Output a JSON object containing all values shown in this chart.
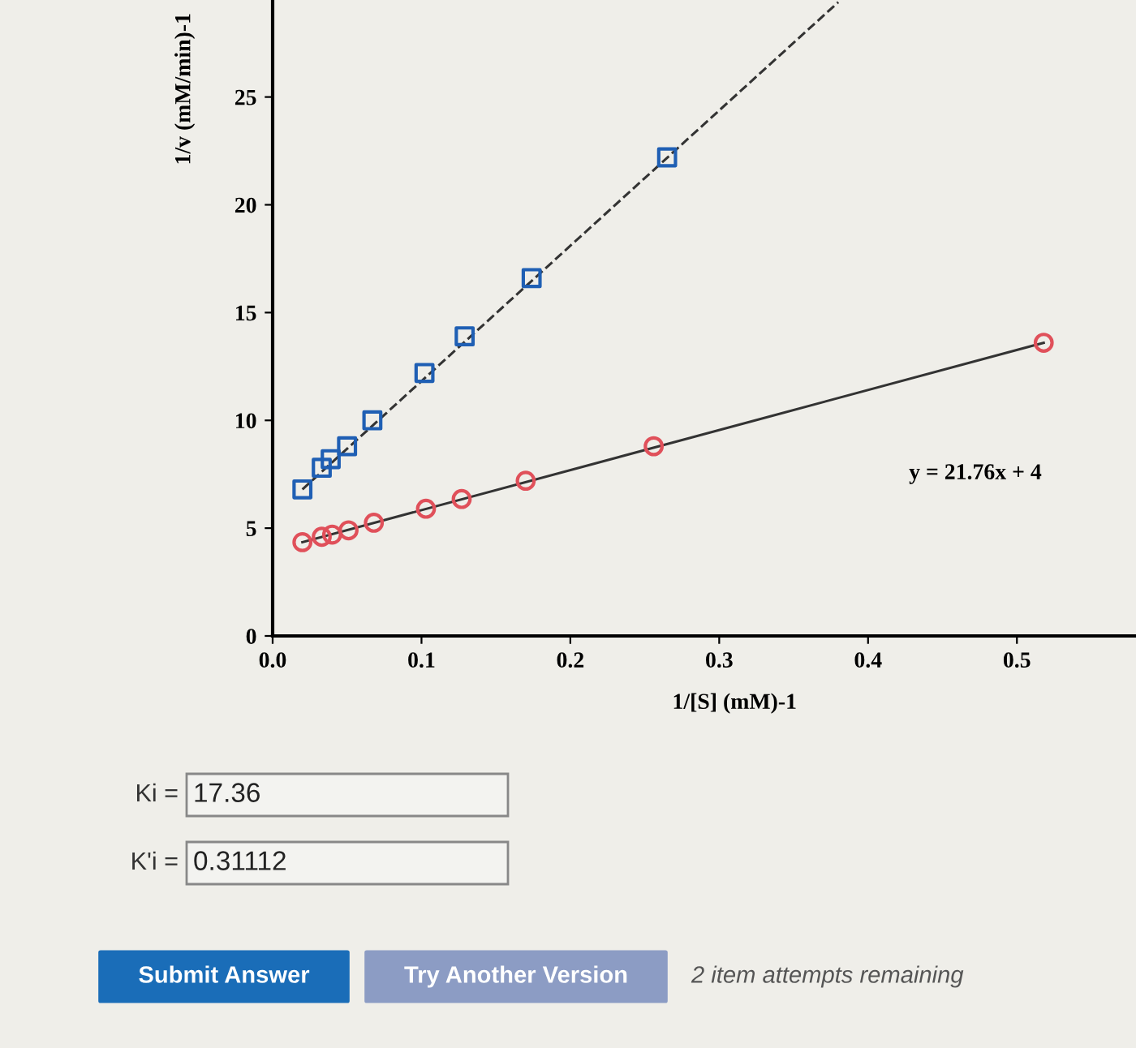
{
  "chart_data": {
    "type": "scatter",
    "xlabel": "1/[S] (mM)-1",
    "ylabel": "1/v (mM/min)-1",
    "xlim": [
      0,
      0.58
    ],
    "ylim": [
      0,
      29.5
    ],
    "xticks": [
      {
        "value": 0,
        "label": "0.0"
      },
      0.1,
      0.2,
      0.3,
      0.4,
      0.5
    ],
    "yticks": [
      0,
      5,
      10,
      15,
      20,
      25
    ],
    "grid": false,
    "legend": false,
    "series": [
      {
        "type": "line",
        "color": "#333333",
        "line_style": "dashed",
        "marker": "none",
        "x": [
          0.02,
          0.38
        ],
        "values": [
          6.8,
          29.4
        ]
      },
      {
        "type": "line",
        "color": "#333333",
        "line_style": "solid",
        "marker": "none",
        "x": [
          0.02,
          0.518
        ],
        "values": [
          4.35,
          13.6
        ]
      },
      {
        "color": "#1f5fb4",
        "marker": "square",
        "x": [
          0.02,
          0.033,
          0.039,
          0.05,
          0.067,
          0.102,
          0.129,
          0.174,
          0.265
        ],
        "values": [
          6.8,
          7.8,
          8.2,
          8.8,
          10.0,
          12.2,
          13.9,
          16.6,
          22.2
        ]
      },
      {
        "color": "#e0505a",
        "marker": "circle",
        "x": [
          0.02,
          0.033,
          0.04,
          0.051,
          0.068,
          0.103,
          0.127,
          0.17,
          0.256,
          0.518
        ],
        "values": [
          4.35,
          4.6,
          4.7,
          4.9,
          5.25,
          5.9,
          6.35,
          7.2,
          8.8,
          13.6
        ]
      }
    ],
    "annotations": [
      "y = 21.76x + 4",
      "Ki =",
      "17.36",
      "K'i =",
      "0.31112",
      "Submit Answer",
      "Try Another Version",
      "2 item attempts remaining"
    ]
  }
}
